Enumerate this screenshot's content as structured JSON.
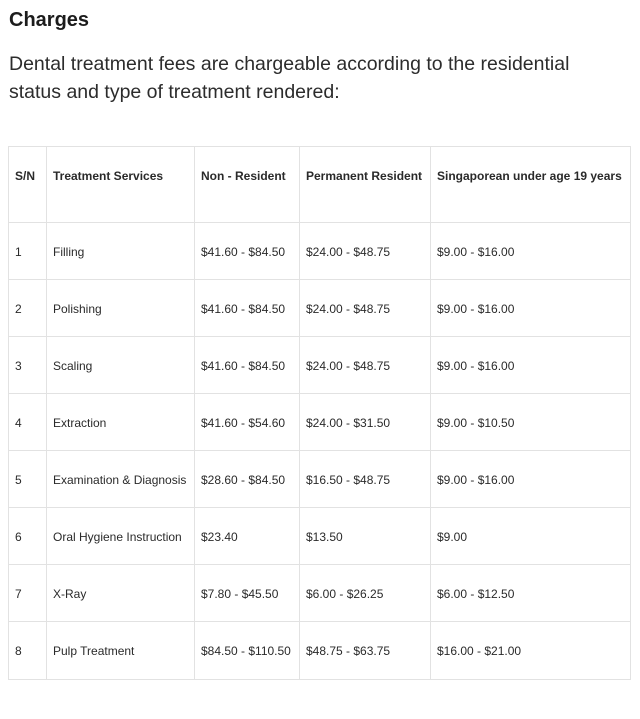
{
  "heading": "Charges",
  "intro": "Dental treatment fees are chargeable according to the residential status and type of treatment rendered:",
  "table": {
    "headers": [
      "S/N",
      "Treatment Services",
      "Non - Resident",
      "Permanent Resident",
      "Singaporean under age 19 years"
    ],
    "rows": [
      {
        "sn": "1",
        "service": "Filling",
        "non_resident": "$41.60 - $84.50",
        "permanent_resident": "$24.00 - $48.75",
        "singaporean": "$9.00 - $16.00"
      },
      {
        "sn": "2",
        "service": "Polishing",
        "non_resident": "$41.60 - $84.50",
        "permanent_resident": "$24.00 - $48.75",
        "singaporean": "$9.00 - $16.00"
      },
      {
        "sn": "3",
        "service": "Scaling",
        "non_resident": "$41.60 - $84.50",
        "permanent_resident": "$24.00 - $48.75",
        "singaporean": "$9.00 - $16.00"
      },
      {
        "sn": "4",
        "service": "Extraction",
        "non_resident": "$41.60 - $54.60",
        "permanent_resident": "$24.00 - $31.50",
        "singaporean": "$9.00 - $10.50"
      },
      {
        "sn": "5",
        "service": "Examination & Diagnosis",
        "non_resident": "$28.60 - $84.50",
        "permanent_resident": "$16.50 - $48.75",
        "singaporean": "$9.00 - $16.00"
      },
      {
        "sn": "6",
        "service": "Oral Hygiene Instruction",
        "non_resident": "$23.40",
        "permanent_resident": "$13.50",
        "singaporean": "$9.00"
      },
      {
        "sn": "7",
        "service": "X-Ray",
        "non_resident": "$7.80 - $45.50",
        "permanent_resident": "$6.00 - $26.25",
        "singaporean": "$6.00 - $12.50"
      },
      {
        "sn": "8",
        "service": "Pulp Treatment",
        "non_resident": "$84.50 - $110.50",
        "permanent_resident": "$48.75 - $63.75",
        "singaporean": "$16.00 - $21.00"
      }
    ]
  }
}
